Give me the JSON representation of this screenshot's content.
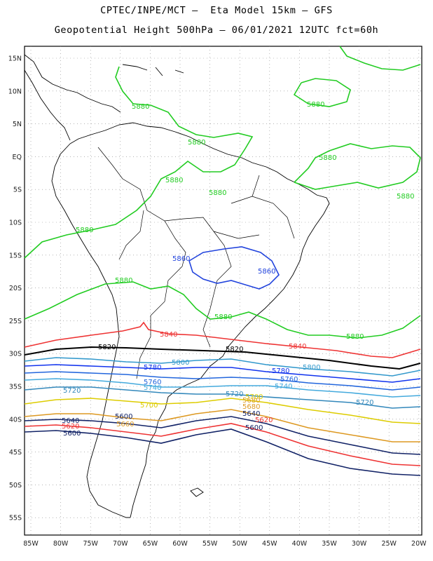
{
  "titles": {
    "line1": "CPTEC/INPE/MCT –  Eta Model 15km – GFS",
    "line2": "Geopotential Height 500hPa – 06/01/2021 12UTC fct=60h"
  },
  "axes": {
    "lat_ticks": [
      "15N",
      "10N",
      "5N",
      "EQ",
      "5S",
      "10S",
      "15S",
      "20S",
      "25S",
      "30S",
      "35S",
      "40S",
      "45S",
      "50S",
      "55S"
    ],
    "lon_ticks": [
      "85W",
      "80W",
      "75W",
      "70W",
      "65W",
      "60W",
      "55W",
      "50W",
      "45W",
      "40W",
      "35W",
      "30W",
      "25W",
      "20W"
    ]
  },
  "contour_labels": [
    {
      "text": "5880",
      "color": "#22cc22"
    },
    {
      "text": "5880",
      "color": "#22cc22"
    },
    {
      "text": "5880",
      "color": "#22cc22"
    },
    {
      "text": "5880",
      "color": "#22cc22"
    },
    {
      "text": "5880",
      "color": "#22cc22"
    },
    {
      "text": "5880",
      "color": "#22cc22"
    },
    {
      "text": "5880",
      "color": "#22cc22"
    },
    {
      "text": "5880",
      "color": "#22cc22"
    },
    {
      "text": "5880",
      "color": "#22cc22"
    },
    {
      "text": "5880",
      "color": "#22cc22"
    },
    {
      "text": "5880",
      "color": "#22cc22"
    },
    {
      "text": "5860",
      "color": "#2244dd"
    },
    {
      "text": "5860",
      "color": "#2244dd"
    },
    {
      "text": "5840",
      "color": "#ee3333"
    },
    {
      "text": "5840",
      "color": "#ee3333"
    },
    {
      "text": "5820",
      "color": "#000000"
    },
    {
      "text": "5820",
      "color": "#000000"
    },
    {
      "text": "5800",
      "color": "#3399cc"
    },
    {
      "text": "5800",
      "color": "#3399cc"
    },
    {
      "text": "5780",
      "color": "#1133ee"
    },
    {
      "text": "5780",
      "color": "#1133ee"
    },
    {
      "text": "5760",
      "color": "#2266dd"
    },
    {
      "text": "5760",
      "color": "#2266dd"
    },
    {
      "text": "5740",
      "color": "#44aadd"
    },
    {
      "text": "5740",
      "color": "#44aadd"
    },
    {
      "text": "5720",
      "color": "#3388bb"
    },
    {
      "text": "5720",
      "color": "#3388bb"
    },
    {
      "text": "5720",
      "color": "#3388bb"
    },
    {
      "text": "5700",
      "color": "#ddcc00"
    },
    {
      "text": "5700",
      "color": "#ddcc00"
    },
    {
      "text": "5680",
      "color": "#dd9922"
    },
    {
      "text": "5660",
      "color": "#dd9922"
    },
    {
      "text": "5640",
      "color": "#112266"
    },
    {
      "text": "5640",
      "color": "#112266"
    },
    {
      "text": "5620",
      "color": "#ee3333"
    },
    {
      "text": "5620",
      "color": "#ee3333"
    },
    {
      "text": "5600",
      "color": "#112266"
    },
    {
      "text": "5600",
      "color": "#112266"
    },
    {
      "text": "5600",
      "color": "#112266"
    },
    {
      "text": "5680",
      "color": "#dd9922"
    }
  ],
  "colors": {
    "green": "#22cc22",
    "blue": "#2244dd",
    "red": "#ee3333",
    "black": "#000000",
    "teal": "#3399cc",
    "yellow": "#ddcc00",
    "orange": "#dd9922",
    "navy": "#112266"
  }
}
